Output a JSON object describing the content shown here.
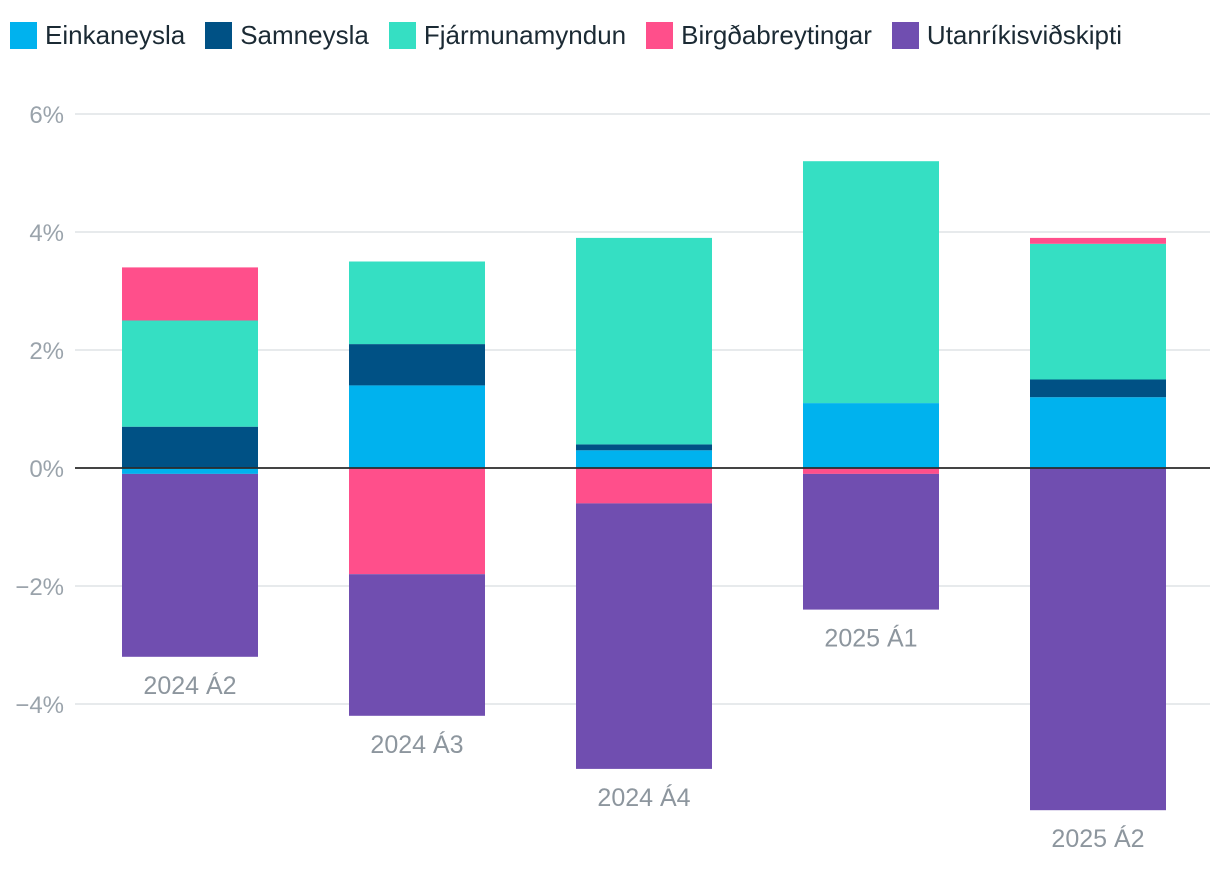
{
  "chart_data": {
    "type": "bar",
    "stacked": true,
    "categories": [
      "2024 Á2",
      "2024 Á3",
      "2024 Á4",
      "2025 Á1",
      "2025 Á2"
    ],
    "series": [
      {
        "name": "Einkaneysla",
        "color": "#00b2ee",
        "values": [
          -0.1,
          1.4,
          0.3,
          1.1,
          1.2
        ]
      },
      {
        "name": "Samneysla",
        "color": "#005185",
        "values": [
          0.7,
          0.7,
          0.1,
          0.0,
          0.3
        ]
      },
      {
        "name": "Fjármunamyndun",
        "color": "#35dfc3",
        "values": [
          1.8,
          1.4,
          3.5,
          4.1,
          2.3
        ]
      },
      {
        "name": "Birgðabreytingar",
        "color": "#ff4f8b",
        "values": [
          0.9,
          -1.8,
          -0.6,
          -0.1,
          0.1
        ]
      },
      {
        "name": "Utanríkisviðskipti",
        "color": "#704eb0",
        "values": [
          -3.1,
          -2.4,
          -4.5,
          -2.3,
          -5.8
        ]
      }
    ],
    "y_ticks": [
      "6%",
      "4%",
      "2%",
      "0%",
      "−2%",
      "−4%"
    ],
    "ylim": [
      -6,
      6
    ],
    "grid": true,
    "legend_position": "top-left"
  }
}
